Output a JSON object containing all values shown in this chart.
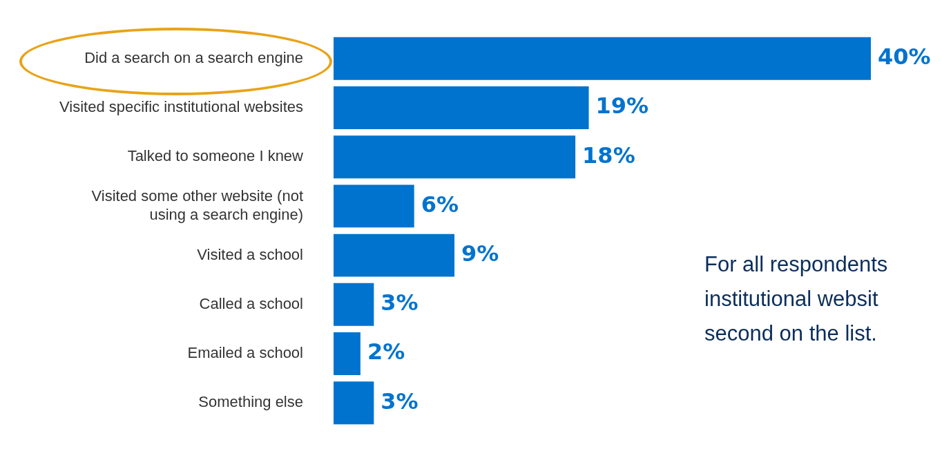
{
  "chart_data": {
    "type": "bar",
    "orientation": "horizontal",
    "categories": [
      "Did a search on a search engine",
      "Visited specific institutional websites",
      "Talked to someone I knew",
      "Visited some other website (not using a search engine)",
      "Visited a school",
      "Called a school",
      "Emailed a school",
      "Something else"
    ],
    "values": [
      40,
      19,
      18,
      6,
      9,
      3,
      2,
      3
    ],
    "value_labels": [
      "40%",
      "19%",
      "18%",
      "6%",
      "9%",
      "3%",
      "2%",
      "3%"
    ],
    "color": "#0073cf",
    "annotations": [
      "For all respondents",
      "institutional websit",
      "second on the list."
    ],
    "legend": false
  }
}
